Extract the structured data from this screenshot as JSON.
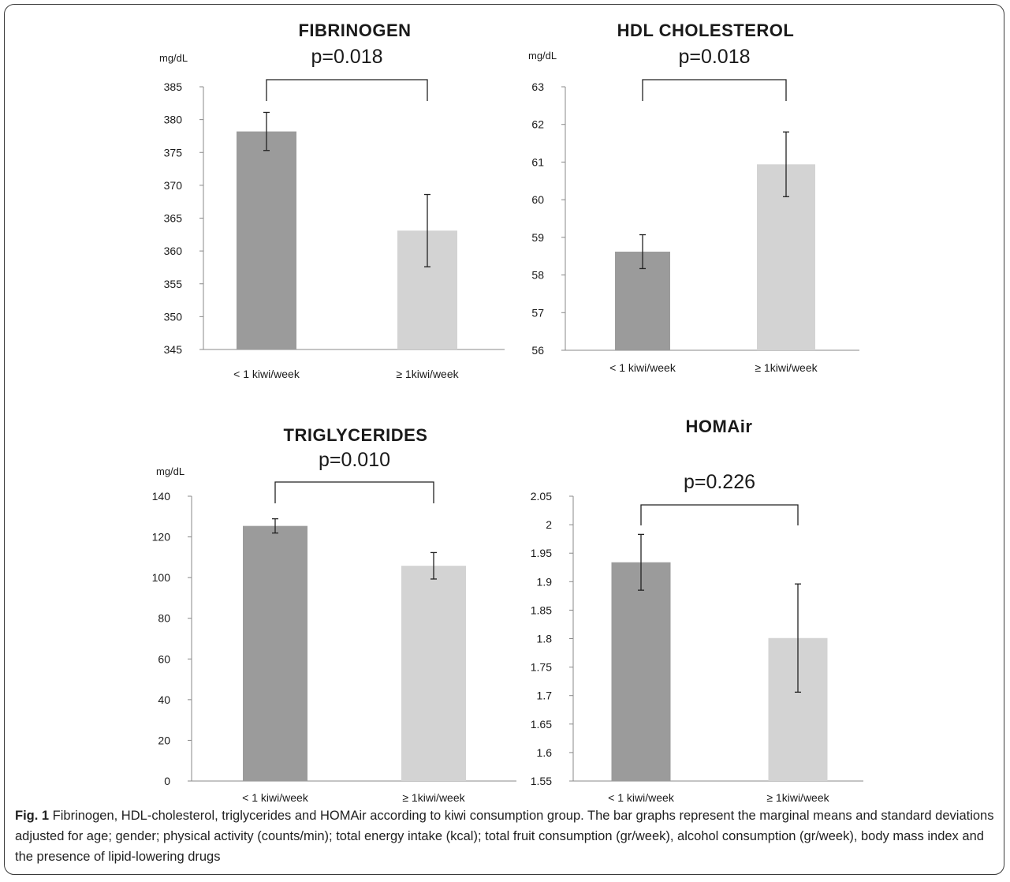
{
  "colors": {
    "bar_dark": "#9b9b9b",
    "bar_light": "#d3d3d3",
    "text": "#1a1a1a",
    "axis": "#888888",
    "bracket": "#222222"
  },
  "chart_data": [
    {
      "type": "bar",
      "title": "FIBRINOGEN",
      "ylabel": "mg/dL",
      "categories": [
        "< 1 kiwi/week",
        "≥ 1kiwi/week"
      ],
      "values": [
        378.2,
        363.1
      ],
      "errors": [
        2.9,
        5.5
      ],
      "ylim": [
        345,
        385
      ],
      "yticks": [
        345,
        350,
        355,
        360,
        365,
        370,
        375,
        380,
        385
      ],
      "ytick_labels": [
        "345",
        "350",
        "355",
        "360",
        "365",
        "370",
        "375",
        "380",
        "385"
      ],
      "pvalue": "p=0.018",
      "grid": false
    },
    {
      "type": "bar",
      "title": "HDL CHOLESTEROL",
      "ylabel": "mg/dL",
      "categories": [
        "< 1 kiwi/week",
        "≥ 1kiwi/week"
      ],
      "values": [
        58.62,
        60.94
      ],
      "errors": [
        0.45,
        0.86
      ],
      "ylim": [
        56,
        63
      ],
      "yticks": [
        56,
        57,
        58,
        59,
        60,
        61,
        62,
        63
      ],
      "ytick_labels": [
        "56",
        "57",
        "58",
        "59",
        "60",
        "61",
        "62",
        "63"
      ],
      "pvalue": "p=0.018",
      "grid": false
    },
    {
      "type": "bar",
      "title": "TRIGLYCERIDES",
      "ylabel": "mg/dL",
      "categories": [
        "< 1 kiwi/week",
        "≥ 1kiwi/week"
      ],
      "values": [
        125.4,
        105.8
      ],
      "errors": [
        3.5,
        6.5
      ],
      "ylim": [
        0,
        140
      ],
      "yticks": [
        0,
        20,
        40,
        60,
        80,
        100,
        120,
        140
      ],
      "ytick_labels": [
        "0",
        "20",
        "40",
        "60",
        "80",
        "100",
        "120",
        "140"
      ],
      "pvalue": "p=0.010",
      "grid": false
    },
    {
      "type": "bar",
      "title": "HOMAir",
      "ylabel": "",
      "categories": [
        "< 1 kiwi/week",
        "≥ 1kiwi/week"
      ],
      "values": [
        1.934,
        1.801
      ],
      "errors": [
        0.049,
        0.095
      ],
      "ylim": [
        1.55,
        2.05
      ],
      "yticks": [
        1.55,
        1.6,
        1.65,
        1.7,
        1.75,
        1.8,
        1.85,
        1.9,
        1.95,
        2.0,
        2.05
      ],
      "ytick_labels": [
        "1.55",
        "1.6",
        "1.65",
        "1.7",
        "1.75",
        "1.8",
        "1.85",
        "1.9",
        "1.95",
        "2",
        "2.05"
      ],
      "pvalue": "p=0.226",
      "grid": false
    }
  ],
  "caption": {
    "label": "Fig. 1",
    "text": " Fibrinogen, HDL-cholesterol, triglycerides and HOMAir according to kiwi consumption group. The bar graphs represent the marginal means and standard deviations adjusted for age; gender; physical activity (counts/min); total energy intake (kcal); total fruit consumption (gr/week), alcohol consumption (gr/week), body mass index and the presence of lipid-lowering drugs"
  }
}
